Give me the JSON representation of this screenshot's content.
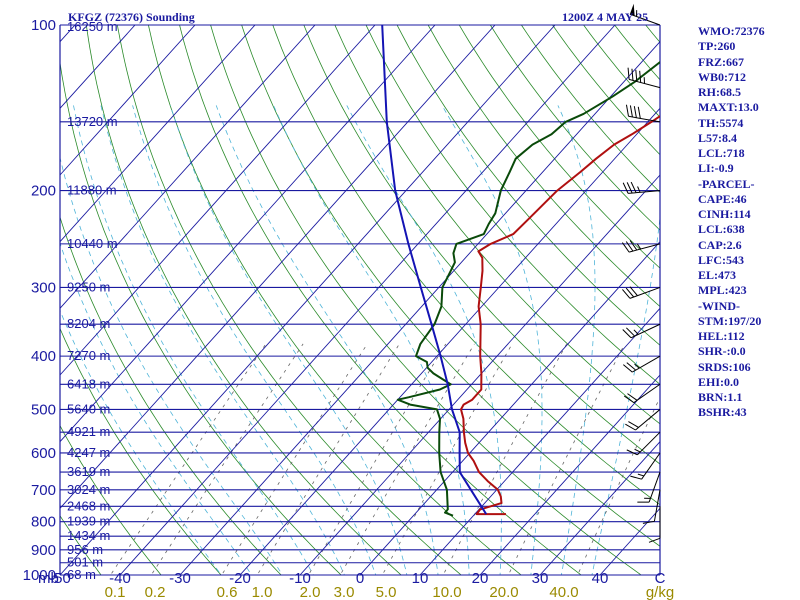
{
  "header": {
    "station": "KFGZ (72376) Sounding",
    "time": "1200Z  4 MAY 25"
  },
  "colors": {
    "isobar": "#1a1aa0",
    "isotherm": "#1a1aa0",
    "dry_adiabat": "#2a8a2a",
    "moist_adiabat": "#4fb4d8",
    "mixing_ratio": "#666666",
    "temperature": "#b01010",
    "dewpoint": "#0a4a0a",
    "parcel": "#1414b4",
    "wind": "#000000",
    "index_text": "#1a1aa0",
    "mixing_label": "#9a8a00"
  },
  "chart_data": {
    "type": "line",
    "title": "KFGZ (72376) Sounding 1200Z 4 MAY 25",
    "y_scale": "log",
    "ylim": [
      1000,
      100
    ],
    "xlim": [
      -50,
      50
    ],
    "pressure_unit": "mb",
    "temperature_unit": "C",
    "mixing_ratio_unit": "g/kg",
    "pressure_levels": [
      100,
      200,
      300,
      400,
      500,
      600,
      700,
      800,
      900,
      1000
    ],
    "isobars": [
      100,
      150,
      200,
      250,
      300,
      350,
      400,
      450,
      500,
      550,
      600,
      650,
      700,
      750,
      800,
      850,
      900,
      950,
      1000
    ],
    "temperature_ticks": [
      "-50",
      "-40",
      "-30",
      "-20",
      "-10",
      "0",
      "10",
      "20",
      "30",
      "40",
      "C"
    ],
    "mixing_ratio_labels": [
      "0.1",
      "0.2",
      "0.6",
      "1.0",
      "2.0",
      "3.0",
      "5.0",
      "10.0",
      "20.0",
      "40.0",
      "g/kg"
    ],
    "mixing_ratio_values": [
      0.1,
      0.2,
      0.6,
      1.0,
      2.0,
      3.0,
      5.0,
      10.0,
      20.0,
      40.0
    ],
    "height_labels": [
      {
        "p": 100,
        "text": "16250 m"
      },
      {
        "p": 150,
        "text": "13720 m"
      },
      {
        "p": 200,
        "text": "11880 m"
      },
      {
        "p": 250,
        "text": "10440 m"
      },
      {
        "p": 300,
        "text": "9250 m"
      },
      {
        "p": 350,
        "text": "8204 m"
      },
      {
        "p": 400,
        "text": "7270 m"
      },
      {
        "p": 450,
        "text": "6418 m"
      },
      {
        "p": 500,
        "text": "5640 m"
      },
      {
        "p": 550,
        "text": "4921 m"
      },
      {
        "p": 600,
        "text": "4247 m"
      },
      {
        "p": 650,
        "text": "3619 m"
      },
      {
        "p": 700,
        "text": "3024 m"
      },
      {
        "p": 750,
        "text": "2468 m"
      },
      {
        "p": 800,
        "text": "1939 m"
      },
      {
        "p": 850,
        "text": "1434 m"
      },
      {
        "p": 900,
        "text": "956 m"
      },
      {
        "p": 950,
        "text": "501 m"
      },
      {
        "p": 1000,
        "text": "68 m"
      }
    ],
    "series": [
      {
        "name": "temperature",
        "points": [
          [
            775,
            15.2
          ],
          [
            775,
            10.3
          ],
          [
            760,
            10.2
          ],
          [
            740,
            12.8
          ],
          [
            720,
            11.7
          ],
          [
            700,
            10.2
          ],
          [
            675,
            7.2
          ],
          [
            650,
            4.4
          ],
          [
            620,
            1.8
          ],
          [
            600,
            -0.3
          ],
          [
            575,
            -2.3
          ],
          [
            550,
            -4.1
          ],
          [
            520,
            -6.2
          ],
          [
            500,
            -8.0
          ],
          [
            490,
            -8.3
          ],
          [
            480,
            -7.6
          ],
          [
            460,
            -7.6
          ],
          [
            450,
            -8.4
          ],
          [
            430,
            -10.0
          ],
          [
            400,
            -12.8
          ],
          [
            380,
            -14.6
          ],
          [
            350,
            -17.5
          ],
          [
            325,
            -20.5
          ],
          [
            300,
            -23.0
          ],
          [
            280,
            -25.2
          ],
          [
            265,
            -27.2
          ],
          [
            258,
            -28.8
          ],
          [
            250,
            -27.9
          ],
          [
            240,
            -25.6
          ],
          [
            225,
            -25.3
          ],
          [
            210,
            -25.0
          ],
          [
            200,
            -24.8
          ],
          [
            185,
            -23.7
          ],
          [
            175,
            -23.1
          ],
          [
            165,
            -22.2
          ],
          [
            158,
            -20.8
          ],
          [
            150,
            -19.4
          ],
          [
            145,
            -18.6
          ],
          [
            140,
            -17.3
          ],
          [
            135,
            -16.1
          ],
          [
            125,
            -14.0
          ],
          [
            118,
            -14.4
          ],
          [
            112,
            -12.6
          ],
          [
            105,
            -11.6
          ],
          [
            100,
            -10.5
          ]
        ]
      },
      {
        "name": "dewpoint",
        "points": [
          [
            780,
            6.6
          ],
          [
            770,
            4.8
          ],
          [
            760,
            4.8
          ],
          [
            700,
            1.7
          ],
          [
            650,
            -2.0
          ],
          [
            600,
            -5.1
          ],
          [
            550,
            -8.2
          ],
          [
            520,
            -10.1
          ],
          [
            500,
            -12.0
          ],
          [
            490,
            -17.2
          ],
          [
            480,
            -20.0
          ],
          [
            475,
            -18.5
          ],
          [
            460,
            -14.5
          ],
          [
            450,
            -13.5
          ],
          [
            430,
            -18.0
          ],
          [
            420,
            -19.8
          ],
          [
            410,
            -20.8
          ],
          [
            400,
            -23.5
          ],
          [
            380,
            -24.6
          ],
          [
            350,
            -25.2
          ],
          [
            325,
            -26.7
          ],
          [
            300,
            -29.4
          ],
          [
            280,
            -30.5
          ],
          [
            270,
            -31.1
          ],
          [
            260,
            -32.7
          ],
          [
            250,
            -33.6
          ],
          [
            240,
            -30.5
          ],
          [
            230,
            -31.2
          ],
          [
            220,
            -31.7
          ],
          [
            200,
            -34.2
          ],
          [
            185,
            -35.5
          ],
          [
            175,
            -36.5
          ],
          [
            165,
            -35.8
          ],
          [
            158,
            -34.2
          ],
          [
            150,
            -33.7
          ],
          [
            145,
            -31.9
          ],
          [
            135,
            -29.7
          ],
          [
            127,
            -28.2
          ],
          [
            115,
            -26.7
          ],
          [
            105,
            -26.6
          ],
          [
            100,
            -26.2
          ]
        ]
      },
      {
        "name": "parcel",
        "points": [
          [
            775,
            11.9
          ],
          [
            700,
            5.7
          ],
          [
            650,
            1.2
          ],
          [
            600,
            -1.7
          ],
          [
            550,
            -4.8
          ],
          [
            500,
            -9.5
          ],
          [
            450,
            -14.0
          ],
          [
            400,
            -19.4
          ],
          [
            350,
            -25.7
          ],
          [
            300,
            -33.0
          ],
          [
            250,
            -41.6
          ],
          [
            200,
            -51.8
          ],
          [
            150,
            -63.5
          ],
          [
            100,
            -78.8
          ]
        ]
      }
    ],
    "wind_barbs": [
      {
        "p": 100,
        "dir": 290,
        "kt": 55
      },
      {
        "p": 130,
        "dir": 285,
        "kt": 45
      },
      {
        "p": 150,
        "dir": 280,
        "kt": 40
      },
      {
        "p": 200,
        "dir": 265,
        "kt": 35
      },
      {
        "p": 250,
        "dir": 255,
        "kt": 35
      },
      {
        "p": 300,
        "dir": 250,
        "kt": 30
      },
      {
        "p": 350,
        "dir": 245,
        "kt": 25
      },
      {
        "p": 400,
        "dir": 240,
        "kt": 25
      },
      {
        "p": 450,
        "dir": 235,
        "kt": 20
      },
      {
        "p": 500,
        "dir": 230,
        "kt": 20
      },
      {
        "p": 550,
        "dir": 225,
        "kt": 15
      },
      {
        "p": 600,
        "dir": 215,
        "kt": 15
      },
      {
        "p": 650,
        "dir": 200,
        "kt": 15
      },
      {
        "p": 700,
        "dir": 190,
        "kt": 10
      },
      {
        "p": 750,
        "dir": 180,
        "kt": 10
      }
    ],
    "indices": [
      "WMO:72376",
      "TP:260",
      "FRZ:667",
      "WB0:712",
      "RH:68.5",
      "MAXT:13.0",
      "TH:5574",
      "L57:8.4",
      "LCL:718",
      "LI:-0.9",
      "-PARCEL-",
      "CAPE:46",
      "CINH:114",
      "LCL:638",
      "CAP:2.6",
      "LFC:543",
      "EL:473",
      "MPL:423",
      "-WIND-",
      "STM:197/20",
      "HEL:112",
      "SHR-:0.0",
      "SRDS:106",
      "EHI:0.0",
      "BRN:1.1",
      "BSHR:43"
    ]
  }
}
